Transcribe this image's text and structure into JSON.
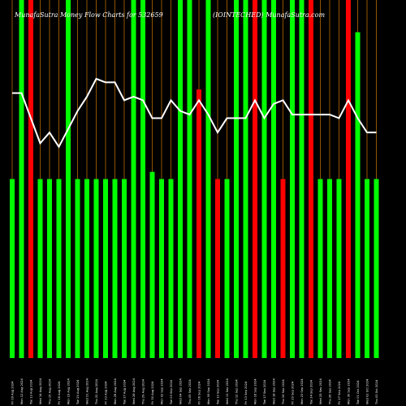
{
  "chart_data": {
    "type": "bar",
    "title_left": "MunafaSutra  Money Flow  Charts for 532659",
    "title_right": "(IOINTECHED) MunafaSutra.com",
    "ylim": [
      0,
      100
    ],
    "colors": {
      "up": "#00ff00",
      "down": "#ff0000",
      "line": "#ffffff",
      "gridline": "#b86a00",
      "background": "#000000"
    },
    "categories": [
      "Fri 09 Aug 2024",
      "Mon 12 Aug 2024",
      "Tue 13 Aug 2024",
      "Wed 14 Aug 2024",
      "Thu 15 Aug 2024",
      "Fri 16 Aug 2024",
      "Mon 19 Aug 2024",
      "Tue 20 Aug 2024",
      "Wed 21 Aug 2024",
      "Thu 22 Aug 2024",
      "Fri 23 Aug 2024",
      "Mon 26 Aug 2024",
      "Tue 27 Aug 2024",
      "Wed 28 Aug 2024",
      "Thu 29 Aug 2024",
      "Fri 30 Aug 2024",
      "Mon 02 Sep 2024",
      "Tue 03 Sep 2024",
      "Wed 04 Sep 2024",
      "Thu 05 Sep 2024",
      "Fri 06 Sep 2024",
      "Mon 09 Sep 2024",
      "Tue 10 Sep 2024",
      "Wed 11 Sep 2024",
      "Thu 12 Sep 2024",
      "Fri 13 Sep 2024",
      "Mon 16 Sep 2024",
      "Tue 17 Sep 2024",
      "Wed 18 Sep 2024",
      "Thu 19 Sep 2024",
      "Fri 20 Sep 2024",
      "Mon 23 Sep 2024",
      "Tue 24 Sep 2024",
      "Wed 25 Sep 2024",
      "Thu 26 Sep 2024",
      "Fri 27 Sep 2024",
      "Mon 30 Sep 2024",
      "Tue 01 Oct 2024",
      "Wed 02 Oct 2024",
      "Thu 03 Oct 2024"
    ],
    "series": [
      {
        "values": [
          50,
          100,
          100,
          50,
          50,
          50,
          100,
          50,
          50,
          50,
          50,
          50,
          50,
          100,
          100,
          52,
          50,
          50,
          100,
          100,
          75,
          100,
          50,
          50,
          100,
          100,
          100,
          100,
          100,
          50,
          100,
          100,
          100,
          50,
          50,
          50,
          100,
          91,
          50,
          50
        ],
        "colors": [
          "up",
          "up",
          "down",
          "up",
          "up",
          "up",
          "up",
          "up",
          "up",
          "up",
          "up",
          "up",
          "up",
          "up",
          "up",
          "up",
          "up",
          "up",
          "up",
          "up",
          "down",
          "up",
          "down",
          "up",
          "up",
          "up",
          "down",
          "up",
          "up",
          "down",
          "up",
          "up",
          "down",
          "up",
          "up",
          "up",
          "down",
          "up",
          "up",
          "up"
        ]
      },
      {
        "values": [
          74,
          74,
          67,
          60,
          63,
          59,
          64,
          69,
          73,
          78,
          77,
          77,
          72,
          73,
          72,
          67,
          67,
          72,
          69,
          68,
          72,
          68,
          63,
          67,
          67,
          67,
          72,
          67,
          71,
          72,
          68,
          68,
          68,
          68,
          68,
          67,
          72,
          67,
          63,
          63
        ]
      }
    ]
  }
}
